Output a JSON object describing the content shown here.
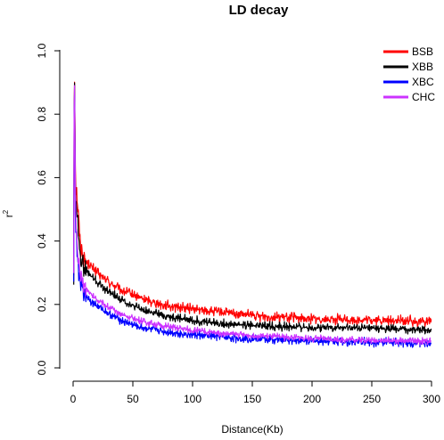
{
  "chart_data": {
    "type": "line",
    "title": "LD decay",
    "xlabel": "Distance(Kb)",
    "ylabel": "r",
    "ylabel_superscript": "2",
    "xlim": [
      0,
      300
    ],
    "ylim": [
      0,
      1
    ],
    "xticks": [
      "0",
      "50",
      "100",
      "150",
      "200",
      "250",
      "300"
    ],
    "yticks": [
      "0.0",
      "0.2",
      "0.4",
      "0.6",
      "0.8",
      "1.0"
    ],
    "grid": false,
    "legend_position": "top-right",
    "x": [
      0.5,
      1,
      2,
      3,
      4,
      5,
      6,
      8,
      10,
      15,
      20,
      30,
      40,
      50,
      60,
      75,
      100,
      125,
      150,
      175,
      200,
      225,
      250,
      275,
      300
    ],
    "series": [
      {
        "name": "BSB",
        "color": "#ff0000",
        "noise": 0.012,
        "values": [
          0.3,
          0.99,
          0.6,
          0.55,
          0.5,
          0.44,
          0.4,
          0.36,
          0.34,
          0.32,
          0.3,
          0.27,
          0.245,
          0.23,
          0.215,
          0.2,
          0.185,
          0.175,
          0.165,
          0.16,
          0.155,
          0.152,
          0.15,
          0.148,
          0.147
        ]
      },
      {
        "name": "XBB",
        "color": "#000000",
        "noise": 0.01,
        "values": [
          0.28,
          0.99,
          0.55,
          0.5,
          0.46,
          0.4,
          0.36,
          0.33,
          0.31,
          0.29,
          0.27,
          0.24,
          0.215,
          0.195,
          0.18,
          0.165,
          0.15,
          0.14,
          0.135,
          0.13,
          0.128,
          0.126,
          0.124,
          0.122,
          0.12
        ]
      },
      {
        "name": "XBC",
        "color": "#0000ff",
        "noise": 0.01,
        "values": [
          0.3,
          0.96,
          0.45,
          0.38,
          0.33,
          0.3,
          0.27,
          0.25,
          0.235,
          0.21,
          0.195,
          0.17,
          0.15,
          0.135,
          0.125,
          0.115,
          0.105,
          0.097,
          0.092,
          0.088,
          0.085,
          0.083,
          0.081,
          0.079,
          0.078
        ]
      },
      {
        "name": "CHC",
        "color": "#cc33ff",
        "noise": 0.008,
        "values": [
          0.33,
          0.98,
          0.5,
          0.42,
          0.36,
          0.32,
          0.29,
          0.27,
          0.255,
          0.23,
          0.215,
          0.19,
          0.17,
          0.155,
          0.145,
          0.132,
          0.118,
          0.108,
          0.102,
          0.097,
          0.093,
          0.09,
          0.087,
          0.085,
          0.084
        ]
      }
    ]
  }
}
